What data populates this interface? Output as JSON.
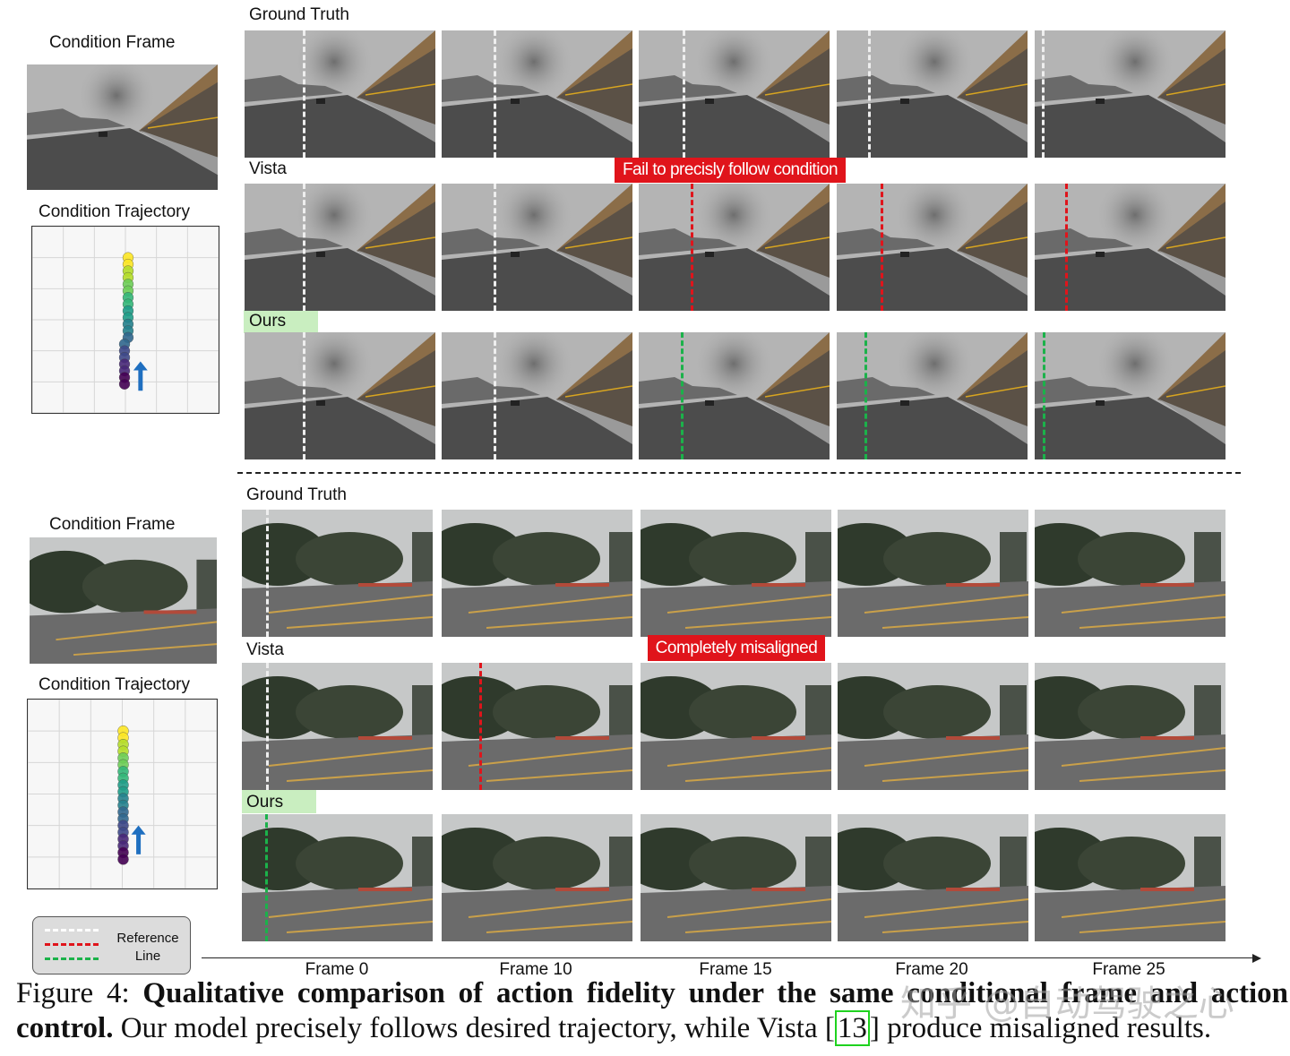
{
  "panels": [
    {
      "condition_frame_label": "Condition Frame",
      "condition_trajectory_label": "Condition Trajectory",
      "rows": [
        {
          "label": "Ground Truth"
        },
        {
          "label": "Vista"
        },
        {
          "label": "Ours"
        }
      ],
      "annotation": "Fail to precisly follow condition"
    },
    {
      "condition_frame_label": "Condition Frame",
      "condition_trajectory_label": "Condition Trajectory",
      "rows": [
        {
          "label": "Ground Truth"
        },
        {
          "label": "Vista"
        },
        {
          "label": "Ours"
        }
      ],
      "annotation": "Completely misaligned"
    }
  ],
  "legend": {
    "label": "Reference Line"
  },
  "frame_labels": [
    "Frame 0",
    "Frame 10",
    "Frame 15",
    "Frame 20",
    "Frame 25"
  ],
  "caption": {
    "figure": "Figure 4:",
    "title": "Qualitative comparison of action fidelity under the same conditional frame and action control.",
    "text_before": "Our model precisely follows desired trajectory, while Vista",
    "citation": "13",
    "text_after": "produce misaligned results."
  },
  "watermark": "知乎 @自动驾驶之心"
}
